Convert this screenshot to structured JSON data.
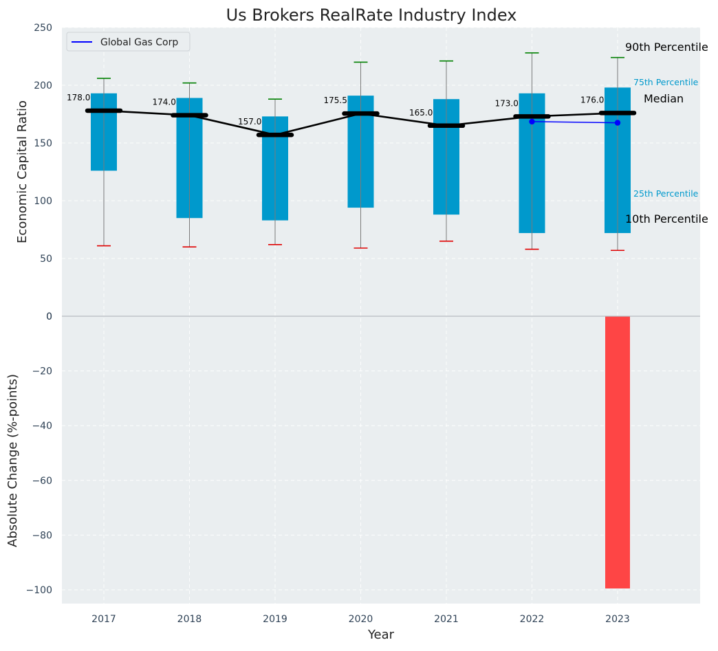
{
  "chart_data": {
    "type": "box",
    "title": "Us Brokers RealRate Industry Index",
    "xlabel": "Year",
    "categories": [
      "2017",
      "2018",
      "2019",
      "2020",
      "2021",
      "2022",
      "2023"
    ],
    "top_panel": {
      "ylabel": "Economic Capital Ratio",
      "ylim": [
        0,
        250
      ],
      "yticks": [
        "0",
        "50",
        "100",
        "150",
        "200",
        "250"
      ],
      "percentiles": {
        "p10": [
          61,
          60,
          62,
          59,
          65,
          58,
          57
        ],
        "p25": [
          126,
          85,
          83,
          94,
          88,
          72,
          72
        ],
        "median": [
          178.0,
          174.0,
          157.0,
          175.5,
          165.0,
          173.0,
          176.0
        ],
        "p75": [
          193,
          189,
          173,
          191,
          188,
          193,
          198
        ],
        "p90": [
          206,
          202,
          188,
          220,
          221,
          228,
          224
        ]
      },
      "median_labels": [
        "178.0",
        "174.0",
        "157.0",
        "175.5",
        "165.0",
        "173.0",
        "176.0"
      ],
      "company": {
        "name": "Global Gas Corp",
        "x": [
          "2022",
          "2023"
        ],
        "values": [
          168.5,
          167.5
        ],
        "color": "#0000ff"
      },
      "annotations": {
        "p90": "90th Percentile",
        "p75": "75th Percentile",
        "median": "Median",
        "p25": "25th Percentile",
        "p10": "10th Percentile"
      },
      "legend": {
        "position": "top-left"
      },
      "grid": true
    },
    "bottom_panel": {
      "ylabel": "Absolute Change (%-points)",
      "ylim": [
        -105,
        0
      ],
      "yticks": [
        "0",
        "−20",
        "−40",
        "−60",
        "−80",
        "−100"
      ],
      "series": [
        {
          "x": "2023",
          "value": -99.5,
          "color": "#ff3b3b"
        }
      ],
      "grid": true
    },
    "colors": {
      "box": "#0099cc",
      "median": "#000000",
      "p90_cap": "#008000",
      "p10_cap": "#e00000",
      "background": "#eaeef0"
    }
  }
}
